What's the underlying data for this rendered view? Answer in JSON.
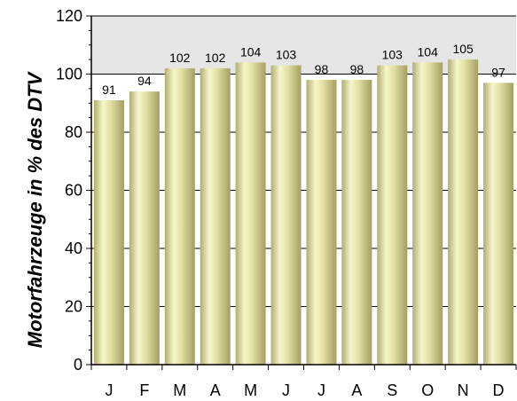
{
  "chart_data": {
    "type": "bar",
    "title": "",
    "xlabel": "",
    "ylabel": "Motorfahrzeuge in % des DTV",
    "categories": [
      "J",
      "F",
      "M",
      "A",
      "M",
      "J",
      "J",
      "A",
      "S",
      "O",
      "N",
      "D"
    ],
    "values": [
      91,
      94,
      102,
      102,
      104,
      103,
      98,
      98,
      103,
      104,
      105,
      97
    ],
    "data_labels": [
      "91",
      "94",
      "102",
      "102",
      "104",
      "103",
      "98",
      "98",
      "103",
      "104",
      "105",
      "97"
    ],
    "ylim": [
      0,
      120
    ],
    "yticks": [
      0,
      20,
      40,
      60,
      80,
      100,
      120
    ],
    "ytick_labels": [
      "0",
      "20",
      "40",
      "60",
      "80",
      "100",
      "120"
    ],
    "grid": true,
    "reference_line": 100,
    "shaded_band": [
      100,
      120
    ],
    "colors": {
      "bar_light": "#f4f4c4",
      "bar_mid": "#e0dc9c",
      "bar_dark": "#a7a265",
      "shaded_band": "#e6e6e6",
      "plot_background": "#ffffff"
    }
  }
}
